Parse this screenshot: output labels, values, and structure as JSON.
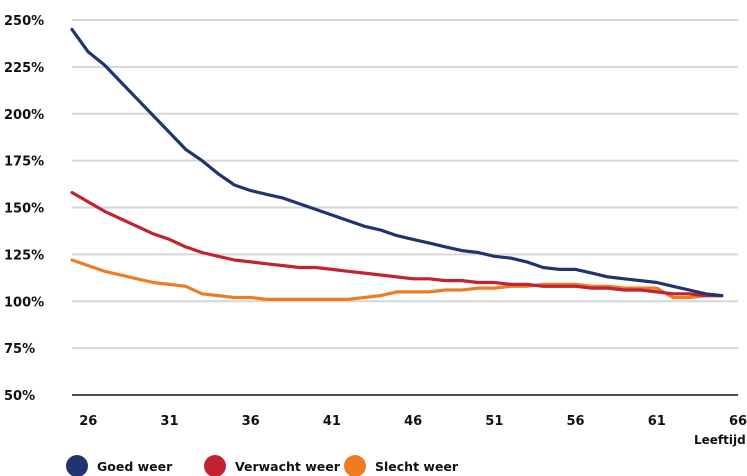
{
  "chart_data": {
    "type": "line",
    "xlabel": "Leeftijd",
    "x": [
      25,
      26,
      27,
      28,
      29,
      30,
      31,
      32,
      33,
      34,
      35,
      36,
      37,
      38,
      39,
      40,
      41,
      42,
      43,
      44,
      45,
      46,
      47,
      48,
      49,
      50,
      51,
      52,
      53,
      54,
      55,
      56,
      57,
      58,
      59,
      60,
      61,
      62,
      63,
      64,
      65
    ],
    "xticks": [
      26,
      31,
      36,
      41,
      46,
      51,
      56,
      61,
      66
    ],
    "xtick_labels": [
      "26",
      "31",
      "36",
      "41",
      "46",
      "51",
      "56",
      "61",
      "66"
    ],
    "xlim": [
      25,
      66
    ],
    "ylim": [
      50,
      250
    ],
    "yticks": [
      50,
      75,
      100,
      125,
      150,
      175,
      200,
      225,
      250
    ],
    "ytick_labels": [
      "50%",
      "75%",
      "100%",
      "125%",
      "150%",
      "175%",
      "200%",
      "225%",
      "250%"
    ],
    "grid": true,
    "legend_position": "bottom",
    "series": [
      {
        "name": "Goed weer",
        "color": "#22346f",
        "values": [
          245,
          233,
          226,
          217,
          208,
          199,
          190,
          181,
          175,
          168,
          162,
          159,
          157,
          155,
          152,
          149,
          146,
          143,
          140,
          138,
          135,
          133,
          131,
          129,
          127,
          126,
          124,
          123,
          121,
          118,
          117,
          117,
          115,
          113,
          112,
          111,
          110,
          108,
          106,
          104,
          103
        ]
      },
      {
        "name": "Verwacht weer",
        "color": "#c22231",
        "values": [
          158,
          153,
          148,
          144,
          140,
          136,
          133,
          129,
          126,
          124,
          122,
          121,
          120,
          119,
          118,
          118,
          117,
          116,
          115,
          114,
          113,
          112,
          112,
          111,
          111,
          110,
          110,
          109,
          109,
          108,
          108,
          108,
          107,
          107,
          106,
          106,
          105,
          104,
          104,
          103,
          103
        ]
      },
      {
        "name": "Slecht weer",
        "color": "#ef7c22",
        "values": [
          122,
          119,
          116,
          114,
          112,
          110,
          109,
          108,
          104,
          103,
          102,
          102,
          101,
          101,
          101,
          101,
          101,
          101,
          102,
          103,
          105,
          105,
          105,
          106,
          106,
          107,
          107,
          108,
          108,
          109,
          109,
          109,
          108,
          108,
          107,
          107,
          107,
          102,
          102,
          103,
          103
        ]
      }
    ]
  }
}
